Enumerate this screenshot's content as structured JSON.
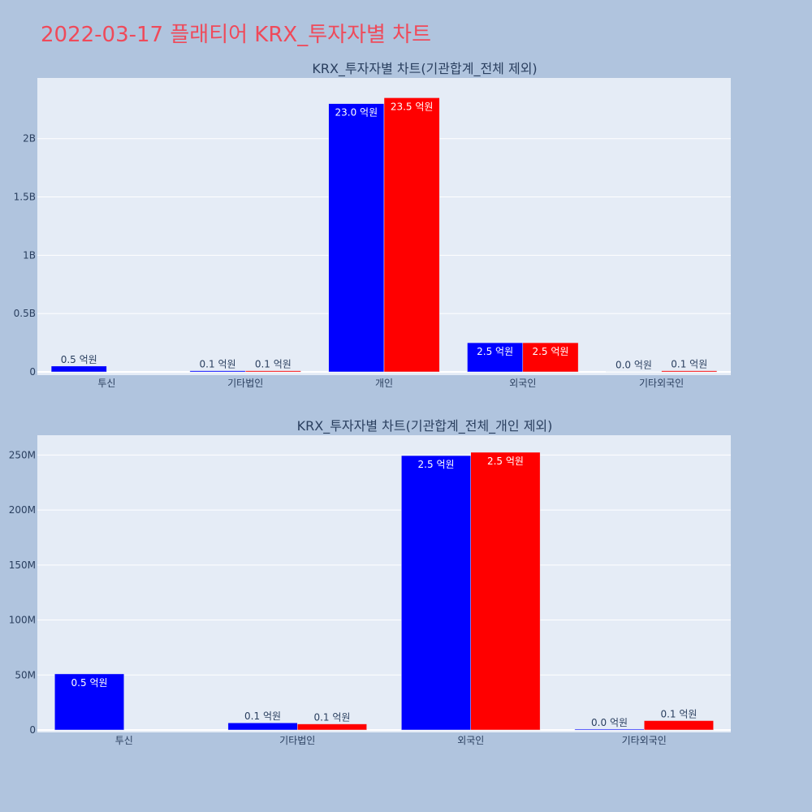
{
  "page_title": "2022-03-17 플래티어 KRX_투자자별 차트",
  "colors": {
    "page_background": "#b0c4de",
    "plot_background": "#e5ecf6",
    "title_color": "#ef4a5a",
    "text_color": "#2a3f5f",
    "series_1": "#0000ff",
    "series_2": "#ff0000"
  },
  "chart_data": [
    {
      "type": "bar",
      "title": "KRX_투자자별 차트(기관합계_전체 제외)",
      "categories": [
        "투신",
        "기타법인",
        "개인",
        "외국인",
        "기타외국인"
      ],
      "ylim": [
        0,
        2.52
      ],
      "y_unit_note": "values in billions (B)",
      "yticks": [
        0,
        0.5,
        1,
        1.5,
        2
      ],
      "ytick_labels": [
        "0",
        "0.5B",
        "1B",
        "1.5B",
        "2B"
      ],
      "grid": true,
      "legend": "none",
      "series": [
        {
          "color": "#0000ff",
          "values": [
            0.05,
            0.01,
            2.3,
            0.25,
            0.002
          ],
          "labels": [
            "0.5 억원",
            "0.1 억원",
            "23.0 억원",
            "2.5 억원",
            "0.0 억원"
          ]
        },
        {
          "color": "#ff0000",
          "values": [
            0.0,
            0.01,
            2.35,
            0.25,
            0.01
          ],
          "labels": [
            "",
            "0.1 억원",
            "23.5 억원",
            "2.5 억원",
            "0.1 억원"
          ]
        }
      ]
    },
    {
      "type": "bar",
      "title": "KRX_투자자별 차트(기관합계_전체_개인 제외)",
      "categories": [
        "투신",
        "기타법인",
        "외국인",
        "기타외국인"
      ],
      "ylim": [
        0,
        268
      ],
      "y_unit_note": "values in millions (M)",
      "yticks": [
        0,
        50,
        100,
        150,
        200,
        250
      ],
      "ytick_labels": [
        "0",
        "50M",
        "100M",
        "150M",
        "200M",
        "250M"
      ],
      "grid": true,
      "legend": "none",
      "series": [
        {
          "color": "#0000ff",
          "values": [
            51,
            6.5,
            249.5,
            0.8
          ],
          "labels": [
            "0.5 억원",
            "0.1 억원",
            "2.5 억원",
            "0.0 억원"
          ]
        },
        {
          "color": "#ff0000",
          "values": [
            0,
            5.5,
            252.5,
            8.5
          ],
          "labels": [
            "",
            "0.1 억원",
            "2.5 억원",
            "0.1 억원"
          ]
        }
      ]
    }
  ]
}
